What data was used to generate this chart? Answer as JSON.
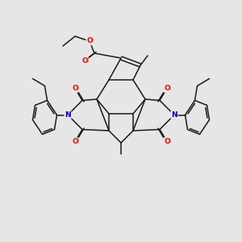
{
  "background_color": "#e6e6e6",
  "bond_color": "#1a1a1a",
  "atom_colors": {
    "O": "#ff0000",
    "N": "#0000cd",
    "C": "#1a1a1a"
  },
  "figsize": [
    3.0,
    3.0
  ],
  "dpi": 100
}
